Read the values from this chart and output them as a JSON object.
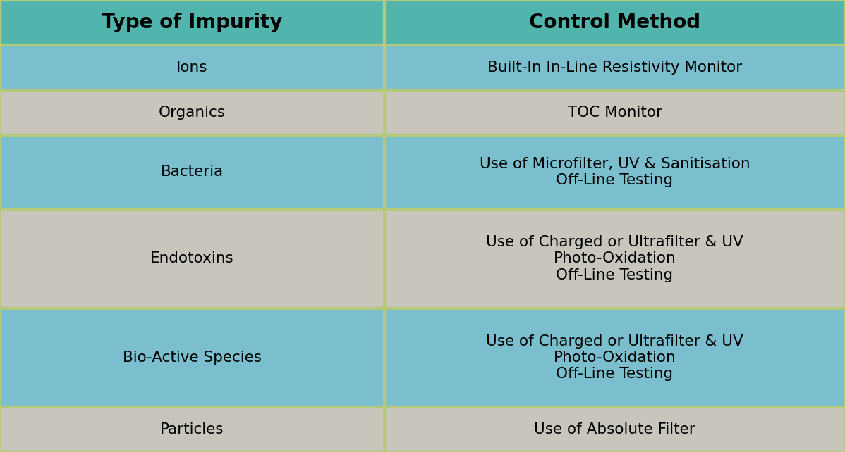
{
  "header": [
    "Type of Impurity",
    "Control Method"
  ],
  "rows": [
    [
      "Ions",
      "Built-In In-Line Resistivity Monitor"
    ],
    [
      "Organics",
      "TOC Monitor"
    ],
    [
      "Bacteria",
      "Use of Microfilter, UV & Sanitisation\nOff-Line Testing"
    ],
    [
      "Endotoxins",
      "Use of Charged or Ultrafilter & UV\nPhoto-Oxidation\nOff-Line Testing"
    ],
    [
      "Bio-Active Species",
      "Use of Charged or Ultrafilter & UV\nPhoto-Oxidation\nOff-Line Testing"
    ],
    [
      "Particles",
      "Use of Absolute Filter"
    ]
  ],
  "header_bg": "#52B5AD",
  "row_colors": [
    "#7BBFCE",
    "#C8C5BC",
    "#7BBFCE",
    "#C8C5BC",
    "#7BBFCE",
    "#C8C5BC"
  ],
  "divider_color": "#B5C97A",
  "header_text_color": "#000000",
  "row_text_color": "#000000",
  "header_fontsize": 20,
  "row_fontsize": 15.5,
  "col_split": 0.455,
  "fig_bg": "#C8C5BC",
  "border_color": "#B5C97A",
  "border_width": 3.0,
  "weights": [
    1.0,
    1.0,
    1.65,
    2.2,
    2.2,
    1.0
  ],
  "header_weight": 1.0
}
